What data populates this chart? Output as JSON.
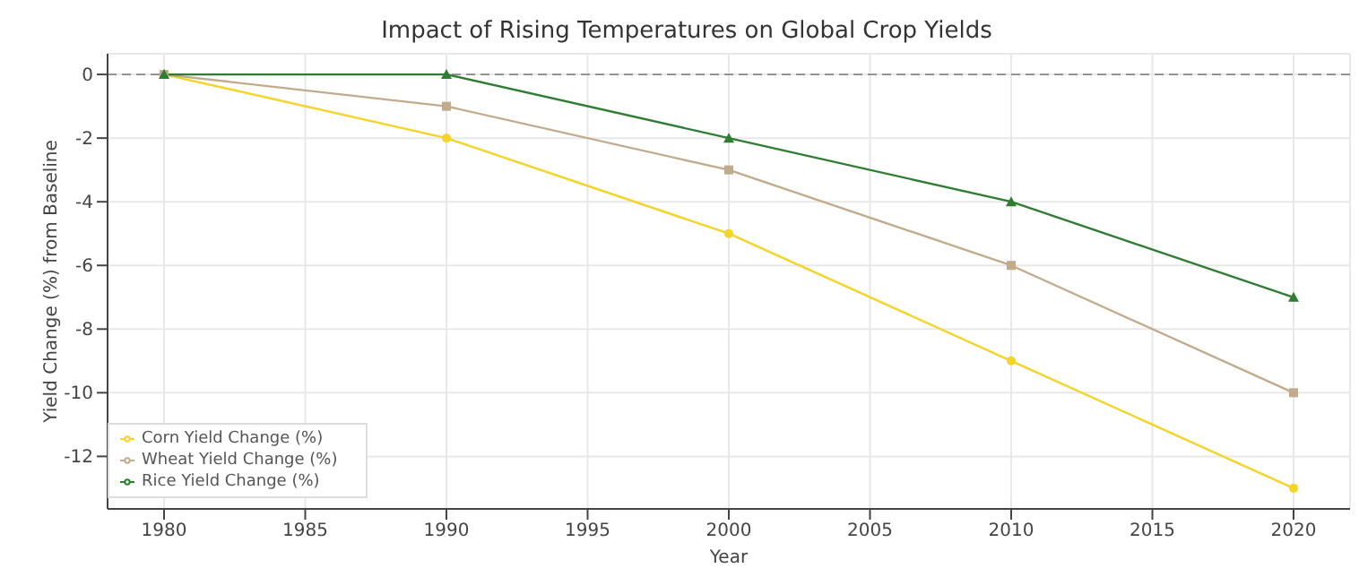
{
  "chart_data": {
    "type": "line",
    "title": "Impact of Rising Temperatures on Global Crop Yields",
    "xlabel": "Year",
    "ylabel": "Yield Change (%) from Baseline",
    "x": [
      1980,
      1990,
      2000,
      2010,
      2020
    ],
    "series": [
      {
        "name": "Corn Yield Change (%)",
        "color": "#f5d327",
        "marker": "circle",
        "values": [
          0,
          -2,
          -5,
          -9,
          -13
        ]
      },
      {
        "name": "Wheat Yield Change (%)",
        "color": "#c2aa8c",
        "marker": "square",
        "values": [
          0,
          -1,
          -3,
          -6,
          -10
        ]
      },
      {
        "name": "Rice Yield Change (%)",
        "color": "#2e7d32",
        "marker": "triangle",
        "values": [
          0,
          0,
          -2,
          -4,
          -7
        ]
      }
    ],
    "xlim": [
      1978,
      2022
    ],
    "xticks": [
      1980,
      1985,
      1990,
      1995,
      2000,
      2005,
      2010,
      2015,
      2020
    ],
    "ylim": [
      -13.65,
      0.65
    ],
    "yticks": [
      -12,
      -10,
      -8,
      -6,
      -4,
      -2,
      0
    ],
    "ref_lines": [
      {
        "axis": "y",
        "value": 0,
        "color": "#888888",
        "line_style": "dashed"
      }
    ],
    "grid": true,
    "legend": "bottom left",
    "line_style": "solid"
  }
}
